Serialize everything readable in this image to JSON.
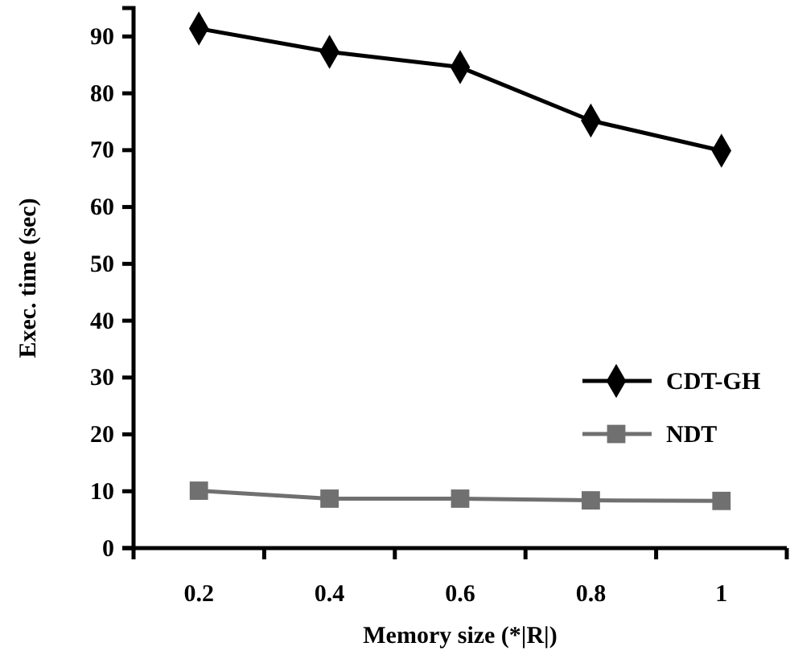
{
  "chart_data": {
    "type": "line",
    "xlabel": "Memory size (*|R|)",
    "ylabel": "Exec. time (sec)",
    "categories": [
      "0.2",
      "0.4",
      "0.6",
      "0.8",
      "1"
    ],
    "series": [
      {
        "name": "CDT-GH",
        "color": "#000000",
        "marker": "diamond",
        "values": [
          91.4,
          87.3,
          84.6,
          75.2,
          69.9
        ]
      },
      {
        "name": "NDT",
        "color": "#707070",
        "marker": "square",
        "values": [
          10.1,
          8.7,
          8.7,
          8.4,
          8.3
        ]
      }
    ],
    "ylim": [
      0,
      95
    ],
    "yticks": [
      0,
      10,
      20,
      30,
      40,
      50,
      60,
      70,
      80,
      90
    ],
    "grid": false,
    "legend": "right",
    "line_style": "solid"
  }
}
